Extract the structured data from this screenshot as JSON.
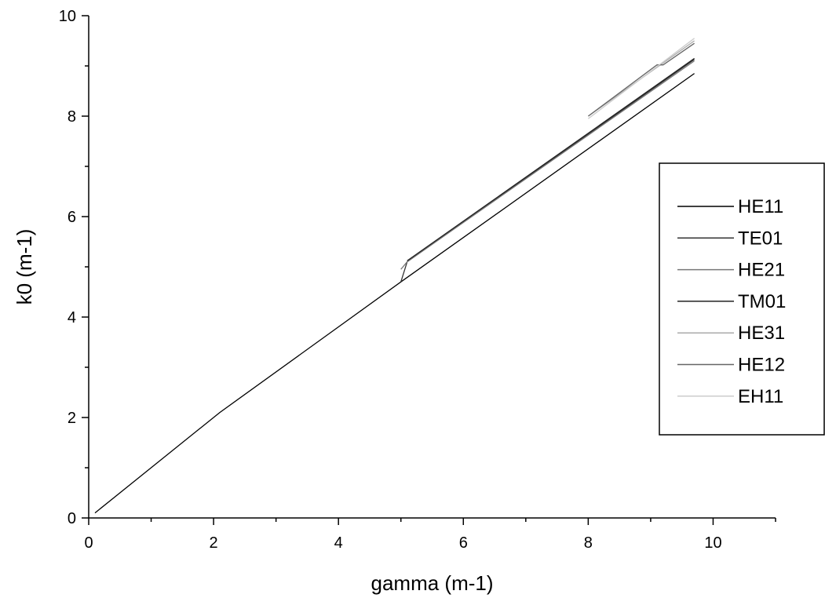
{
  "chart_data": {
    "type": "line",
    "xlabel": "gamma (m-1)",
    "ylabel": "k0 (m-1)",
    "xlim": [
      0,
      11
    ],
    "ylim": [
      0,
      10
    ],
    "x_ticks": [
      0,
      2,
      4,
      6,
      8,
      10
    ],
    "y_ticks": [
      0,
      2,
      4,
      6,
      8,
      10
    ],
    "x_minor_ticks": [
      1,
      3,
      5,
      7,
      9,
      11
    ],
    "y_minor_ticks": [
      1,
      3,
      5,
      7,
      9
    ],
    "grid": false,
    "legend_position": "right",
    "series": [
      {
        "name": "HE11",
        "color": "#000000",
        "x": [
          0.1,
          2.1,
          5.0,
          9.7
        ],
        "y": [
          0.1,
          2.1,
          4.7,
          8.85
        ]
      },
      {
        "name": "TE01",
        "color": "#333333",
        "x": [
          5.0,
          5.1,
          9.7
        ],
        "y": [
          4.7,
          5.1,
          9.13
        ]
      },
      {
        "name": "HE21",
        "color": "#777777",
        "x": [
          5.0,
          5.1,
          9.7
        ],
        "y": [
          4.95,
          5.1,
          9.1
        ]
      },
      {
        "name": "TM01",
        "color": "#222222",
        "x": [
          5.1,
          9.7
        ],
        "y": [
          5.12,
          9.15
        ]
      },
      {
        "name": "HE31",
        "color": "#aaaaaa",
        "x": [
          8.0,
          9.7
        ],
        "y": [
          8.0,
          9.5
        ]
      },
      {
        "name": "HE12",
        "color": "#666666",
        "x": [
          8.0,
          9.1,
          9.2,
          9.7
        ],
        "y": [
          8.0,
          9.02,
          9.02,
          9.45
        ]
      },
      {
        "name": "EH11",
        "color": "#cccccc",
        "x": [
          8.0,
          9.7
        ],
        "y": [
          7.95,
          9.55
        ]
      }
    ]
  }
}
